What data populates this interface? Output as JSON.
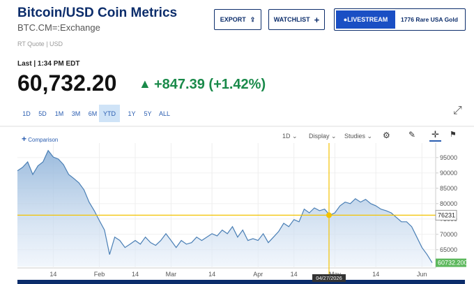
{
  "header": {
    "title": "Bitcoin/USD Coin Metrics",
    "symbol": "BTC.CM=:Exchange",
    "quote_type": "RT Quote | USD"
  },
  "actions": {
    "export": "EXPORT",
    "watchlist": "WATCHLIST",
    "livestream": "LIVESTREAM",
    "promo": "1776 Rare USA Gold"
  },
  "quote": {
    "last": "Last | 1:34 PM EDT",
    "price": "60,732.20",
    "change": "+847.39 (+1.42%)"
  },
  "ranges": {
    "options": [
      "1D",
      "5D",
      "1M",
      "3M",
      "6M",
      "YTD",
      "1Y",
      "5Y",
      "ALL"
    ],
    "active": "YTD"
  },
  "toolbar": {
    "comparison": "Comparison",
    "interval": "1D",
    "display": "Display",
    "studies": "Studies"
  },
  "chart_data": {
    "type": "area",
    "color": "#4a7fb5",
    "categories": [
      null,
      null,
      null,
      null,
      null,
      null,
      null,
      "14",
      null,
      null,
      null,
      null,
      null,
      null,
      null,
      null,
      "Feb",
      null,
      null,
      null,
      null,
      null,
      null,
      "14",
      null,
      null,
      null,
      null,
      null,
      null,
      "Mar",
      null,
      null,
      null,
      null,
      null,
      null,
      null,
      "14",
      null,
      null,
      null,
      null,
      null,
      null,
      null,
      null,
      "Apr",
      null,
      null,
      null,
      null,
      null,
      null,
      "14",
      null,
      null,
      null,
      null,
      null,
      null,
      null,
      "May",
      null,
      null,
      null,
      null,
      null,
      null,
      null,
      "14",
      null,
      null,
      null,
      null,
      null,
      null,
      null,
      null,
      "Jun",
      null,
      null
    ],
    "values": [
      90700,
      91800,
      93600,
      89500,
      92300,
      93600,
      97300,
      95200,
      94500,
      92700,
      89500,
      88200,
      86800,
      84500,
      80500,
      77700,
      74500,
      71400,
      63400,
      69100,
      68000,
      65700,
      66800,
      68000,
      66800,
      69100,
      67300,
      66400,
      68000,
      70200,
      68000,
      65700,
      68000,
      66800,
      67300,
      69100,
      68000,
      69100,
      70200,
      69500,
      71400,
      70200,
      72500,
      69100,
      71400,
      68000,
      68600,
      68000,
      70200,
      67300,
      69100,
      70900,
      73600,
      72500,
      74800,
      74100,
      78200,
      77000,
      78600,
      77700,
      78200,
      76231,
      77000,
      79300,
      80500,
      80000,
      81600,
      80500,
      81400,
      80000,
      79300,
      78200,
      77700,
      77000,
      75500,
      74100,
      74100,
      72500,
      69100,
      65700,
      63400,
      60732
    ],
    "ylim": [
      59500,
      98600
    ],
    "yticks": [
      65000,
      70000,
      75000,
      80000,
      85000,
      90000,
      95000
    ],
    "grid": true,
    "crosshair": {
      "value": 76231,
      "date": "04/27/2026"
    },
    "last_value_label": "60732.200"
  }
}
